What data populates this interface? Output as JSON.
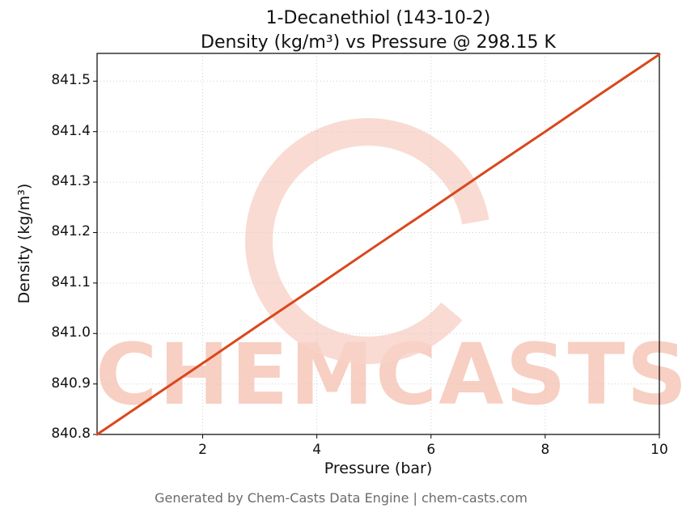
{
  "title": {
    "line1": "1-Decanethiol (143-10-2)",
    "line2": "Density (kg/m³) vs Pressure @ 298.15 K"
  },
  "axes": {
    "xlabel": "Pressure (bar)",
    "ylabel": "Density (kg/m³)"
  },
  "footer": "Generated by Chem-Casts Data Engine | chem-casts.com",
  "watermark": {
    "text": "CHEMCASTS",
    "letter_color": "#f5c0b0",
    "ring_color": "#f8d2c8"
  },
  "colors": {
    "line": "#d9481c",
    "grid": "#cfcfcf",
    "axis": "#000000"
  },
  "chart_data": {
    "type": "line",
    "title": "1-Decanethiol (143-10-2) — Density (kg/m³) vs Pressure @ 298.15 K",
    "xlabel": "Pressure (bar)",
    "ylabel": "Density (kg/m³)",
    "xlim": [
      0.15,
      10
    ],
    "ylim": [
      840.8,
      841.555
    ],
    "x_ticks": [
      2,
      4,
      6,
      8,
      10
    ],
    "y_ticks": [
      840.8,
      840.9,
      841.0,
      841.1,
      841.2,
      841.3,
      841.4,
      841.5
    ],
    "grid": true,
    "legend": false,
    "series": [
      {
        "name": "Density",
        "color": "#d9481c",
        "x": [
          0.15,
          1,
          2,
          3,
          4,
          5,
          6,
          7,
          8,
          9,
          10
        ],
        "y": [
          840.8,
          840.865,
          840.941,
          841.018,
          841.094,
          841.171,
          841.247,
          841.324,
          841.4,
          841.477,
          841.553
        ]
      }
    ]
  }
}
